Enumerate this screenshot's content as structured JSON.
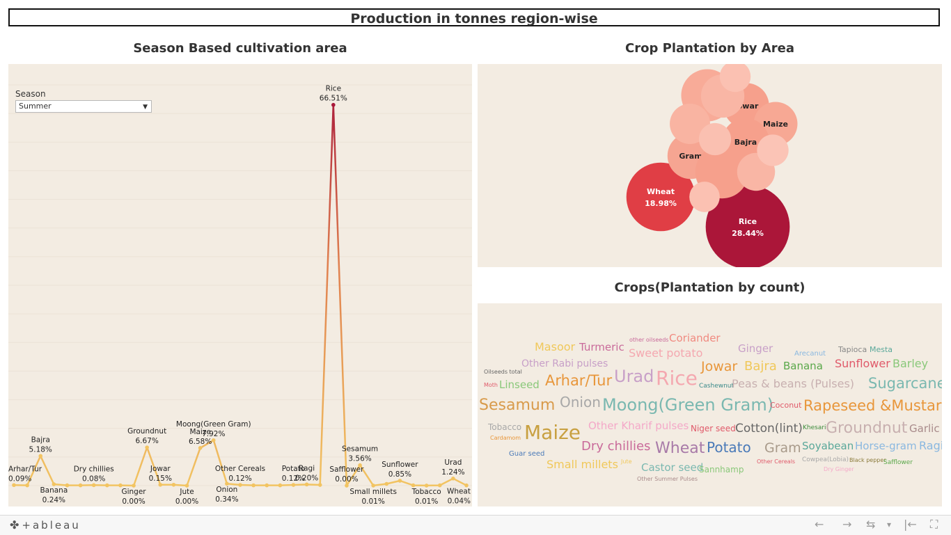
{
  "page_title": "Production in tonnes region-wise",
  "sections": {
    "season": "Season Based cultivation area",
    "area": "Crop Plantation by Area",
    "count": "Crops(Plantation by count)"
  },
  "filter": {
    "label": "Season",
    "value": "Summer"
  },
  "footer": {
    "brand": "+ableau",
    "brand_mark": "✤",
    "back": "←",
    "forward": "→",
    "revert": "⇆",
    "dropdown": "▾",
    "first": "|←",
    "fullscreen": "⛶"
  },
  "chart_data": [
    {
      "type": "line",
      "title": "Season Based cultivation area",
      "colors": {
        "low": "#f2c462",
        "high": "#a8183a"
      },
      "points": [
        {
          "label": "Arhar/Tur",
          "value": 0.09,
          "text": "0.09%",
          "pos": "above"
        },
        {
          "label": "",
          "value": 0.05
        },
        {
          "label": "Bajra",
          "value": 5.18,
          "text": "5.18%",
          "pos": "above"
        },
        {
          "label": "Banana",
          "value": 0.24,
          "text": "0.24%",
          "pos": "below"
        },
        {
          "label": "",
          "value": 0.05
        },
        {
          "label": "",
          "value": 0.05
        },
        {
          "label": "Dry chillies",
          "value": 0.08,
          "text": "0.08%",
          "pos": "above"
        },
        {
          "label": "",
          "value": 0.05
        },
        {
          "label": "",
          "value": 0.05
        },
        {
          "label": "Ginger",
          "value": 0.0,
          "text": "0.00%",
          "pos": "below"
        },
        {
          "label": "Groundnut",
          "value": 6.67,
          "text": "6.67%",
          "pos": "above"
        },
        {
          "label": "Jowar",
          "value": 0.15,
          "text": "0.15%",
          "pos": "above"
        },
        {
          "label": "",
          "value": 0.15
        },
        {
          "label": "Jute",
          "value": 0.0,
          "text": "0.00%",
          "pos": "below"
        },
        {
          "label": "Maize",
          "value": 6.58,
          "text": "6.58%",
          "pos": "above"
        },
        {
          "label": "Moong(Green Gram)",
          "value": 7.92,
          "text": "7.92%",
          "pos": "above"
        },
        {
          "label": "Onion",
          "value": 0.34,
          "text": "0.34%",
          "pos": "below"
        },
        {
          "label": "Other Cereals",
          "value": 0.12,
          "text": "0.12%",
          "pos": "above"
        },
        {
          "label": "",
          "value": 0.05
        },
        {
          "label": "",
          "value": 0.05
        },
        {
          "label": "",
          "value": 0.05
        },
        {
          "label": "Potato",
          "value": 0.12,
          "text": "0.12%",
          "pos": "above"
        },
        {
          "label": "Ragi",
          "value": 0.2,
          "text": "0.20%",
          "pos": "above"
        },
        {
          "label": "",
          "value": 0.12
        },
        {
          "label": "Rice",
          "value": 66.51,
          "text": "66.51%",
          "pos": "above"
        },
        {
          "label": "Safflower",
          "value": 0.0,
          "text": "0.00%",
          "pos": "above"
        },
        {
          "label": "Sesamum",
          "value": 3.56,
          "text": "3.56%",
          "pos": "above"
        },
        {
          "label": "Small millets",
          "value": 0.01,
          "text": "0.01%",
          "pos": "below"
        },
        {
          "label": "",
          "value": 0.3
        },
        {
          "label": "Sunflower",
          "value": 0.85,
          "text": "0.85%",
          "pos": "above"
        },
        {
          "label": "",
          "value": 0.05
        },
        {
          "label": "Tobacco",
          "value": 0.01,
          "text": "0.01%",
          "pos": "below"
        },
        {
          "label": "",
          "value": 0.05
        },
        {
          "label": "Urad",
          "value": 1.24,
          "text": "1.24%",
          "pos": "above"
        },
        {
          "label": "Wheat",
          "value": 0.04,
          "text": "0.04%",
          "pos": "below"
        }
      ],
      "ylim": [
        0,
        70
      ]
    },
    {
      "type": "bubble",
      "title": "Crop Plantation by Area",
      "bubbles": [
        {
          "name": "Rice",
          "pct": "28.44%",
          "value": 28.44,
          "color": "#ab1639"
        },
        {
          "name": "Wheat",
          "pct": "18.98%",
          "value": 18.98,
          "color": "#e03e45"
        },
        {
          "name": "Jowar",
          "value": 5.6,
          "color": "#f6a08c"
        },
        {
          "name": "Maize",
          "value": 5.2,
          "color": "#f7a894"
        },
        {
          "name": "Bajra",
          "value": 6.1,
          "color": "#f6a08c"
        },
        {
          "name": "Gram",
          "value": 5.8,
          "color": "#f6a592"
        },
        {
          "name": "",
          "value": 7.7,
          "color": "#f6a08c"
        },
        {
          "name": "",
          "value": 7.4,
          "color": "#f8ab98"
        },
        {
          "name": "",
          "value": 4.4,
          "color": "#f9b4a2"
        },
        {
          "name": "",
          "value": 5.1,
          "color": "#f9b6a5"
        },
        {
          "name": "",
          "value": 3.9,
          "color": "#f9b6a5"
        },
        {
          "name": "",
          "value": 2.6,
          "color": "#fbc1b2"
        },
        {
          "name": "",
          "value": 2.8,
          "color": "#fac0b1"
        },
        {
          "name": "",
          "value": 2.7,
          "color": "#fbc4b6"
        },
        {
          "name": "",
          "value": 2.5,
          "color": "#fbc1b2"
        }
      ]
    },
    {
      "type": "wordcloud",
      "title": "Crops(Plantation by count)",
      "words": [
        {
          "text": "Masoor",
          "size": 16,
          "color": "#f0c85a"
        },
        {
          "text": "Turmeric",
          "size": 15,
          "color": "#c96a9a"
        },
        {
          "text": "other oilseeds",
          "size": 8,
          "color": "#c96a9a"
        },
        {
          "text": "Coriander",
          "size": 15,
          "color": "#f08a80"
        },
        {
          "text": "Ginger",
          "size": 15,
          "color": "#c8a0c8"
        },
        {
          "text": "Arecanut",
          "size": 10,
          "color": "#8ab8e0"
        },
        {
          "text": "Tapioca",
          "size": 11,
          "color": "#888888"
        },
        {
          "text": "Mesta",
          "size": 11,
          "color": "#5aa89a"
        },
        {
          "text": "Other Rabi pulses",
          "size": 14,
          "color": "#c8a0c8"
        },
        {
          "text": "Sweet potato",
          "size": 16,
          "color": "#f4a8b0"
        },
        {
          "text": "Oilseeds total",
          "size": 8,
          "color": "#666666"
        },
        {
          "text": "Jowar",
          "size": 19,
          "color": "#e8963a"
        },
        {
          "text": "Bajra",
          "size": 18,
          "color": "#f0c85a"
        },
        {
          "text": "Banana",
          "size": 15,
          "color": "#5aa84a"
        },
        {
          "text": "Sunflower",
          "size": 16,
          "color": "#e05a6a"
        },
        {
          "text": "Barley",
          "size": 16,
          "color": "#8ac87a"
        },
        {
          "text": "Moth",
          "size": 8,
          "color": "#e05a6a"
        },
        {
          "text": "Linseed",
          "size": 15,
          "color": "#8ac87a"
        },
        {
          "text": "Arhar/Tur",
          "size": 21,
          "color": "#e8963a"
        },
        {
          "text": "Urad",
          "size": 24,
          "color": "#c8a0c8"
        },
        {
          "text": "Rice",
          "size": 28,
          "color": "#f4a8b0"
        },
        {
          "text": "Cashewnut",
          "size": 9,
          "color": "#3a8a8a"
        },
        {
          "text": "Peas & beans (Pulses)",
          "size": 16,
          "color": "#c8b0b0"
        },
        {
          "text": "Sugarcane",
          "size": 21,
          "color": "#7ab8b0"
        },
        {
          "text": "Sesamum",
          "size": 22,
          "color": "#d89a4a"
        },
        {
          "text": "Onion",
          "size": 20,
          "color": "#a8a8a8"
        },
        {
          "text": "Moong(Green Gram)",
          "size": 24,
          "color": "#7ab8b0"
        },
        {
          "text": "Coconut",
          "size": 11,
          "color": "#e05a6a"
        },
        {
          "text": "Rapeseed &Mustard",
          "size": 21,
          "color": "#e8963a"
        },
        {
          "text": "Tobacco",
          "size": 12,
          "color": "#a8a8a8"
        },
        {
          "text": "Maize",
          "size": 28,
          "color": "#c8a040"
        },
        {
          "text": "Other Kharif pulses",
          "size": 15,
          "color": "#f4a8c8"
        },
        {
          "text": "Niger seed",
          "size": 12,
          "color": "#e05a6a"
        },
        {
          "text": "Cotton(lint)",
          "size": 17,
          "color": "#666666"
        },
        {
          "text": "Khesari",
          "size": 9,
          "color": "#3a8a3a"
        },
        {
          "text": "Groundnut",
          "size": 22,
          "color": "#c8b0b0"
        },
        {
          "text": "Garlic",
          "size": 15,
          "color": "#a88a8a"
        },
        {
          "text": "Cardamom",
          "size": 8,
          "color": "#e8963a"
        },
        {
          "text": "Dry chillies",
          "size": 18,
          "color": "#c96a9a"
        },
        {
          "text": "Wheat",
          "size": 22,
          "color": "#a87aa8"
        },
        {
          "text": "Potato",
          "size": 20,
          "color": "#4a7ab8"
        },
        {
          "text": "Gram",
          "size": 19,
          "color": "#a89a8a"
        },
        {
          "text": "Soyabean",
          "size": 15,
          "color": "#5aa89a"
        },
        {
          "text": "Horse-gram",
          "size": 15,
          "color": "#8ab8e0"
        },
        {
          "text": "Ragi",
          "size": 16,
          "color": "#8ab8e0"
        },
        {
          "text": "Guar seed",
          "size": 10,
          "color": "#4a7ab8"
        },
        {
          "text": "Small millets",
          "size": 16,
          "color": "#f0c85a"
        },
        {
          "text": "Jute",
          "size": 8,
          "color": "#f0c85a"
        },
        {
          "text": "Castor seed",
          "size": 15,
          "color": "#7ab8b0"
        },
        {
          "text": "Sannhamp",
          "size": 12,
          "color": "#8ac87a"
        },
        {
          "text": "Other Cereals",
          "size": 8,
          "color": "#e05a6a"
        },
        {
          "text": "Cowpea(Lobia)",
          "size": 9,
          "color": "#a8a8a8"
        },
        {
          "text": "Black pepper",
          "size": 8,
          "color": "#8a7a3a"
        },
        {
          "text": "Safflower",
          "size": 9,
          "color": "#5aa84a"
        },
        {
          "text": "Other Summer Pulses",
          "size": 8,
          "color": "#a88a8a"
        },
        {
          "text": "Dry Ginger",
          "size": 8,
          "color": "#f4a8c8"
        }
      ]
    }
  ]
}
